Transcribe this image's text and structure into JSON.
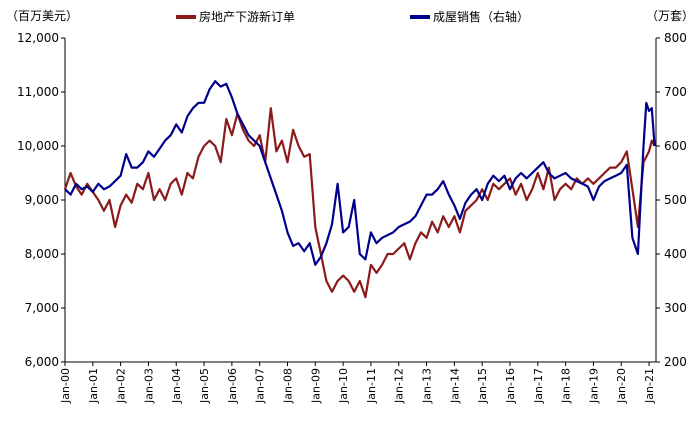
{
  "chart_data": {
    "type": "line",
    "y_left_unit": "（百万美元）",
    "y_right_unit": "（万套）",
    "y_left_ticks": [
      "6,000",
      "7,000",
      "8,000",
      "9,000",
      "10,000",
      "11,000",
      "12,000"
    ],
    "y_right_ticks": [
      "200",
      "300",
      "400",
      "500",
      "600",
      "700",
      "800"
    ],
    "ylim_left": [
      6000,
      12000
    ],
    "ylim_right": [
      200,
      800
    ],
    "xlim": [
      2000.0,
      2021.25
    ],
    "x_ticks": [
      "Jan-00",
      "Jan-01",
      "Jan-02",
      "Jan-03",
      "Jan-04",
      "Jan-05",
      "Jan-06",
      "Jan-07",
      "Jan-08",
      "Jan-09",
      "Jan-10",
      "Jan-11",
      "Jan-12",
      "Jan-13",
      "Jan-14",
      "Jan-15",
      "Jan-16",
      "Jan-17",
      "Jan-18",
      "Jan-19",
      "Jan-20",
      "Jan-21"
    ],
    "legend_position": "top",
    "grid": false,
    "series": [
      {
        "name": "房地产下游新订单",
        "axis": "left",
        "color": "#8B1A1A",
        "points": [
          [
            2000.0,
            9200
          ],
          [
            2000.2,
            9500
          ],
          [
            2000.4,
            9250
          ],
          [
            2000.6,
            9100
          ],
          [
            2000.8,
            9300
          ],
          [
            2001.0,
            9150
          ],
          [
            2001.2,
            9000
          ],
          [
            2001.4,
            8800
          ],
          [
            2001.6,
            9000
          ],
          [
            2001.8,
            8500
          ],
          [
            2002.0,
            8900
          ],
          [
            2002.2,
            9100
          ],
          [
            2002.4,
            8950
          ],
          [
            2002.6,
            9300
          ],
          [
            2002.8,
            9200
          ],
          [
            2003.0,
            9500
          ],
          [
            2003.2,
            9000
          ],
          [
            2003.4,
            9200
          ],
          [
            2003.6,
            9000
          ],
          [
            2003.8,
            9300
          ],
          [
            2004.0,
            9400
          ],
          [
            2004.2,
            9100
          ],
          [
            2004.4,
            9500
          ],
          [
            2004.6,
            9400
          ],
          [
            2004.8,
            9800
          ],
          [
            2005.0,
            10000
          ],
          [
            2005.2,
            10100
          ],
          [
            2005.4,
            10000
          ],
          [
            2005.6,
            9700
          ],
          [
            2005.8,
            10500
          ],
          [
            2006.0,
            10200
          ],
          [
            2006.2,
            10600
          ],
          [
            2006.4,
            10300
          ],
          [
            2006.6,
            10100
          ],
          [
            2006.8,
            10000
          ],
          [
            2007.0,
            10200
          ],
          [
            2007.2,
            9700
          ],
          [
            2007.4,
            10700
          ],
          [
            2007.6,
            9900
          ],
          [
            2007.8,
            10100
          ],
          [
            2008.0,
            9700
          ],
          [
            2008.2,
            10300
          ],
          [
            2008.4,
            10000
          ],
          [
            2008.6,
            9800
          ],
          [
            2008.8,
            9850
          ],
          [
            2009.0,
            8500
          ],
          [
            2009.2,
            8000
          ],
          [
            2009.4,
            7500
          ],
          [
            2009.6,
            7300
          ],
          [
            2009.8,
            7500
          ],
          [
            2010.0,
            7600
          ],
          [
            2010.2,
            7500
          ],
          [
            2010.4,
            7300
          ],
          [
            2010.6,
            7500
          ],
          [
            2010.8,
            7200
          ],
          [
            2011.0,
            7800
          ],
          [
            2011.2,
            7650
          ],
          [
            2011.4,
            7800
          ],
          [
            2011.6,
            8000
          ],
          [
            2011.8,
            8000
          ],
          [
            2012.0,
            8100
          ],
          [
            2012.2,
            8200
          ],
          [
            2012.4,
            7900
          ],
          [
            2012.6,
            8200
          ],
          [
            2012.8,
            8400
          ],
          [
            2013.0,
            8300
          ],
          [
            2013.2,
            8600
          ],
          [
            2013.4,
            8400
          ],
          [
            2013.6,
            8700
          ],
          [
            2013.8,
            8500
          ],
          [
            2014.0,
            8700
          ],
          [
            2014.2,
            8400
          ],
          [
            2014.4,
            8800
          ],
          [
            2014.6,
            8900
          ],
          [
            2014.8,
            9000
          ],
          [
            2015.0,
            9200
          ],
          [
            2015.2,
            9000
          ],
          [
            2015.4,
            9300
          ],
          [
            2015.6,
            9200
          ],
          [
            2015.8,
            9300
          ],
          [
            2016.0,
            9400
          ],
          [
            2016.2,
            9100
          ],
          [
            2016.4,
            9300
          ],
          [
            2016.6,
            9000
          ],
          [
            2016.8,
            9200
          ],
          [
            2017.0,
            9500
          ],
          [
            2017.2,
            9200
          ],
          [
            2017.4,
            9600
          ],
          [
            2017.6,
            9000
          ],
          [
            2017.8,
            9200
          ],
          [
            2018.0,
            9300
          ],
          [
            2018.2,
            9200
          ],
          [
            2018.4,
            9400
          ],
          [
            2018.6,
            9300
          ],
          [
            2018.8,
            9400
          ],
          [
            2019.0,
            9300
          ],
          [
            2019.2,
            9400
          ],
          [
            2019.4,
            9500
          ],
          [
            2019.6,
            9600
          ],
          [
            2019.8,
            9600
          ],
          [
            2020.0,
            9700
          ],
          [
            2020.2,
            9900
          ],
          [
            2020.4,
            9200
          ],
          [
            2020.6,
            8500
          ],
          [
            2020.8,
            9700
          ],
          [
            2021.0,
            9900
          ],
          [
            2021.1,
            10100
          ],
          [
            2021.2,
            10000
          ]
        ]
      },
      {
        "name": "成屋销售（右轴）",
        "axis": "right",
        "color": "#00008B",
        "points": [
          [
            2000.0,
            520
          ],
          [
            2000.2,
            510
          ],
          [
            2000.4,
            530
          ],
          [
            2000.6,
            520
          ],
          [
            2000.8,
            525
          ],
          [
            2001.0,
            515
          ],
          [
            2001.2,
            530
          ],
          [
            2001.4,
            520
          ],
          [
            2001.6,
            525
          ],
          [
            2001.8,
            535
          ],
          [
            2002.0,
            545
          ],
          [
            2002.2,
            585
          ],
          [
            2002.4,
            560
          ],
          [
            2002.6,
            560
          ],
          [
            2002.8,
            570
          ],
          [
            2003.0,
            590
          ],
          [
            2003.2,
            580
          ],
          [
            2003.4,
            595
          ],
          [
            2003.6,
            610
          ],
          [
            2003.8,
            620
          ],
          [
            2004.0,
            640
          ],
          [
            2004.2,
            625
          ],
          [
            2004.4,
            655
          ],
          [
            2004.6,
            670
          ],
          [
            2004.8,
            680
          ],
          [
            2005.0,
            680
          ],
          [
            2005.2,
            705
          ],
          [
            2005.4,
            720
          ],
          [
            2005.6,
            710
          ],
          [
            2005.8,
            715
          ],
          [
            2006.0,
            690
          ],
          [
            2006.2,
            660
          ],
          [
            2006.4,
            640
          ],
          [
            2006.6,
            620
          ],
          [
            2006.8,
            610
          ],
          [
            2007.0,
            600
          ],
          [
            2007.2,
            570
          ],
          [
            2007.4,
            540
          ],
          [
            2007.6,
            510
          ],
          [
            2007.8,
            480
          ],
          [
            2008.0,
            440
          ],
          [
            2008.2,
            415
          ],
          [
            2008.4,
            420
          ],
          [
            2008.6,
            405
          ],
          [
            2008.8,
            420
          ],
          [
            2009.0,
            380
          ],
          [
            2009.2,
            395
          ],
          [
            2009.4,
            420
          ],
          [
            2009.6,
            455
          ],
          [
            2009.8,
            530
          ],
          [
            2010.0,
            440
          ],
          [
            2010.2,
            450
          ],
          [
            2010.4,
            500
          ],
          [
            2010.6,
            400
          ],
          [
            2010.8,
            390
          ],
          [
            2011.0,
            440
          ],
          [
            2011.2,
            420
          ],
          [
            2011.4,
            430
          ],
          [
            2011.6,
            435
          ],
          [
            2011.8,
            440
          ],
          [
            2012.0,
            450
          ],
          [
            2012.2,
            455
          ],
          [
            2012.4,
            460
          ],
          [
            2012.6,
            470
          ],
          [
            2012.8,
            490
          ],
          [
            2013.0,
            510
          ],
          [
            2013.2,
            510
          ],
          [
            2013.4,
            520
          ],
          [
            2013.6,
            535
          ],
          [
            2013.8,
            510
          ],
          [
            2014.0,
            490
          ],
          [
            2014.2,
            465
          ],
          [
            2014.4,
            495
          ],
          [
            2014.6,
            510
          ],
          [
            2014.8,
            520
          ],
          [
            2015.0,
            500
          ],
          [
            2015.2,
            530
          ],
          [
            2015.4,
            545
          ],
          [
            2015.6,
            535
          ],
          [
            2015.8,
            545
          ],
          [
            2016.0,
            520
          ],
          [
            2016.2,
            540
          ],
          [
            2016.4,
            550
          ],
          [
            2016.6,
            540
          ],
          [
            2016.8,
            550
          ],
          [
            2017.0,
            560
          ],
          [
            2017.2,
            570
          ],
          [
            2017.4,
            550
          ],
          [
            2017.6,
            540
          ],
          [
            2017.8,
            545
          ],
          [
            2018.0,
            550
          ],
          [
            2018.2,
            540
          ],
          [
            2018.4,
            535
          ],
          [
            2018.6,
            530
          ],
          [
            2018.8,
            525
          ],
          [
            2019.0,
            500
          ],
          [
            2019.2,
            525
          ],
          [
            2019.4,
            535
          ],
          [
            2019.6,
            540
          ],
          [
            2019.8,
            545
          ],
          [
            2020.0,
            550
          ],
          [
            2020.2,
            565
          ],
          [
            2020.4,
            430
          ],
          [
            2020.6,
            400
          ],
          [
            2020.8,
            600
          ],
          [
            2020.9,
            680
          ],
          [
            2021.0,
            665
          ],
          [
            2021.1,
            670
          ],
          [
            2021.2,
            600
          ]
        ]
      }
    ]
  }
}
